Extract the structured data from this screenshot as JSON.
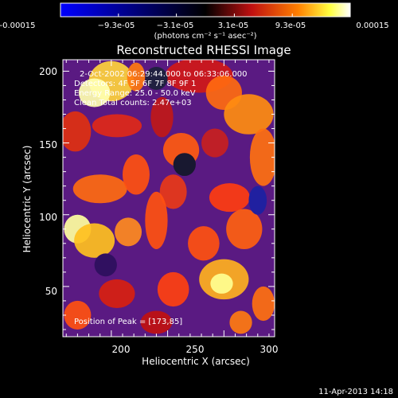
{
  "colorbar": {
    "tick_labels": [
      "-0.00015",
      "−9.3e-05",
      "−3.1e-05",
      "3.1e-05",
      "9.3e-05",
      "0.00015"
    ],
    "unit_label": "(photons cm⁻² s⁻¹ asec⁻²)",
    "range": [
      -0.00015,
      0.00015
    ]
  },
  "chart_data": {
    "type": "heatmap",
    "title": "Reconstructed RHESSI Image",
    "xlabel": "Heliocentric X (arcsec)",
    "ylabel": "Heliocentric Y (arcsec)",
    "xlim": [
      157,
      345
    ],
    "ylim": [
      15,
      208
    ],
    "x_ticks": [
      200,
      250,
      300
    ],
    "y_ticks": [
      50,
      100,
      150,
      200
    ],
    "annotations": [
      "2-Oct-2002 06:29:44.000 to 06:33:06.000",
      "Detectors: 4F 5F 6F 7F 8F 9F 1",
      "Energy Range: 25.0 - 50.0 keV",
      "Clean    Total counts: 2.47e+03"
    ],
    "peak_label": "Position of Peak = [173,85]",
    "peak": [
      173,
      85
    ],
    "colormap": "blue-black-red-yellow-white"
  },
  "footer": {
    "timestamp": "11-Apr-2013 14:18"
  },
  "colors": {
    "background": "#000000",
    "text": "#ffffff"
  }
}
